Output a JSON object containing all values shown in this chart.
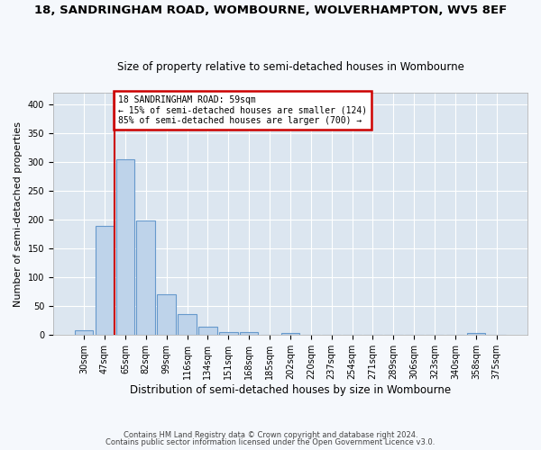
{
  "title_line1": "18, SANDRINGHAM ROAD, WOMBOURNE, WOLVERHAMPTON, WV5 8EF",
  "title_line2": "Size of property relative to semi-detached houses in Wombourne",
  "xlabel": "Distribution of semi-detached houses by size in Wombourne",
  "ylabel": "Number of semi-detached properties",
  "footer_line1": "Contains HM Land Registry data © Crown copyright and database right 2024.",
  "footer_line2": "Contains public sector information licensed under the Open Government Licence v3.0.",
  "categories": [
    "30sqm",
    "47sqm",
    "65sqm",
    "82sqm",
    "99sqm",
    "116sqm",
    "134sqm",
    "151sqm",
    "168sqm",
    "185sqm",
    "202sqm",
    "220sqm",
    "237sqm",
    "254sqm",
    "271sqm",
    "289sqm",
    "306sqm",
    "323sqm",
    "340sqm",
    "358sqm",
    "375sqm"
  ],
  "values": [
    9,
    189,
    305,
    199,
    70,
    36,
    15,
    5,
    5,
    0,
    4,
    0,
    0,
    0,
    0,
    0,
    0,
    0,
    0,
    3,
    0
  ],
  "bar_color": "#bed3ea",
  "bar_edge_color": "#6699cc",
  "vline_x_index": 1.5,
  "annotation_text": "18 SANDRINGHAM ROAD: 59sqm\n← 15% of semi-detached houses are smaller (124)\n85% of semi-detached houses are larger (700) →",
  "annotation_box_color": "#ffffff",
  "annotation_border_color": "#cc0000",
  "vline_color": "#cc0000",
  "ylim": [
    0,
    420
  ],
  "yticks": [
    0,
    50,
    100,
    150,
    200,
    250,
    300,
    350,
    400
  ],
  "background_color": "#dce6f0",
  "grid_color": "#ffffff",
  "fig_bg_color": "#f5f8fc",
  "title_fontsize": 9.5,
  "subtitle_fontsize": 8.5,
  "ylabel_fontsize": 8,
  "xlabel_fontsize": 8.5,
  "tick_fontsize": 7,
  "annotation_fontsize": 7,
  "footer_fontsize": 6
}
